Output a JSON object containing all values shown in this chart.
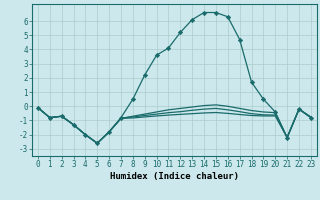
{
  "x": [
    0,
    1,
    2,
    3,
    4,
    5,
    6,
    7,
    8,
    9,
    10,
    11,
    12,
    13,
    14,
    15,
    16,
    17,
    18,
    19,
    20,
    21,
    22,
    23
  ],
  "line1": [
    -0.1,
    -0.8,
    -0.7,
    -1.3,
    -2.0,
    -2.6,
    -1.8,
    -0.8,
    0.5,
    2.2,
    3.6,
    4.1,
    5.2,
    6.1,
    6.6,
    6.6,
    6.3,
    4.7,
    1.7,
    0.5,
    -0.4,
    -2.2,
    -0.2,
    -0.8
  ],
  "line2": [
    -0.1,
    -0.8,
    -0.7,
    -1.3,
    -2.0,
    -2.6,
    -1.8,
    -0.85,
    -0.7,
    -0.55,
    -0.4,
    -0.25,
    -0.15,
    -0.05,
    0.05,
    0.1,
    0.0,
    -0.15,
    -0.3,
    -0.4,
    -0.45,
    -2.2,
    -0.2,
    -0.75
  ],
  "line3": [
    -0.1,
    -0.8,
    -0.7,
    -1.3,
    -2.0,
    -2.6,
    -1.8,
    -0.85,
    -0.75,
    -0.65,
    -0.55,
    -0.45,
    -0.38,
    -0.28,
    -0.2,
    -0.15,
    -0.25,
    -0.38,
    -0.52,
    -0.6,
    -0.62,
    -2.2,
    -0.2,
    -0.78
  ],
  "line4": [
    -0.1,
    -0.8,
    -0.7,
    -1.3,
    -2.0,
    -2.6,
    -1.8,
    -0.85,
    -0.82,
    -0.75,
    -0.68,
    -0.62,
    -0.57,
    -0.52,
    -0.47,
    -0.44,
    -0.5,
    -0.58,
    -0.65,
    -0.68,
    -0.68,
    -2.2,
    -0.2,
    -0.8
  ],
  "line_color": "#1a6b6b",
  "bg_color": "#cce8ec",
  "grid_color": "#aacccc",
  "xlabel": "Humidex (Indice chaleur)",
  "ylim": [
    -3.5,
    7.2
  ],
  "xlim": [
    -0.5,
    23.5
  ],
  "yticks": [
    -3,
    -2,
    -1,
    0,
    1,
    2,
    3,
    4,
    5,
    6
  ],
  "xticks": [
    0,
    1,
    2,
    3,
    4,
    5,
    6,
    7,
    8,
    9,
    10,
    11,
    12,
    13,
    14,
    15,
    16,
    17,
    18,
    19,
    20,
    21,
    22,
    23
  ],
  "tick_fontsize": 5.5,
  "xlabel_fontsize": 6.5,
  "linewidth": 0.9,
  "markersize": 2.2
}
